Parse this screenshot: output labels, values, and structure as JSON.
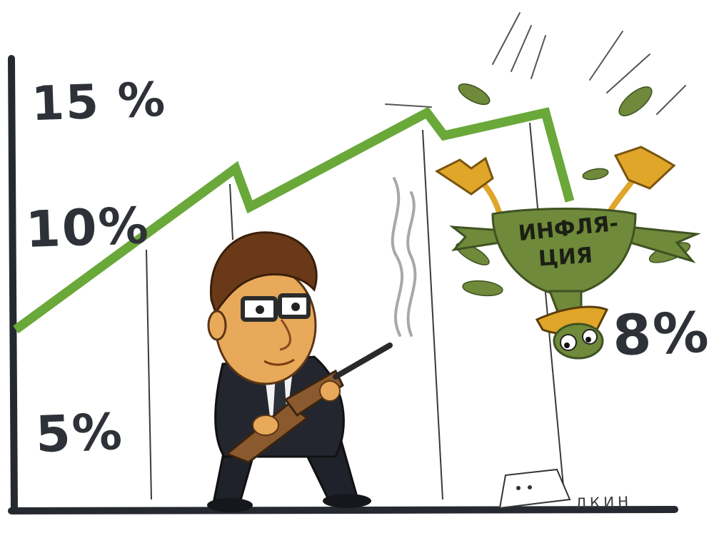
{
  "axis_labels": {
    "fifteen": "15 %",
    "ten": "10%",
    "five": "5%",
    "eight": "8%"
  },
  "bird_tag": {
    "line1": "ИНФЛЯ-",
    "line2": "ЦИЯ"
  },
  "signature": "ЛКИН",
  "colors": {
    "trend_line": "#6aa83a",
    "bird_body": "#6e8a3a",
    "bird_feet": "#e0a62a",
    "ink": "#2e3238",
    "skin": "#e8a95a",
    "suit": "#23262f"
  }
}
